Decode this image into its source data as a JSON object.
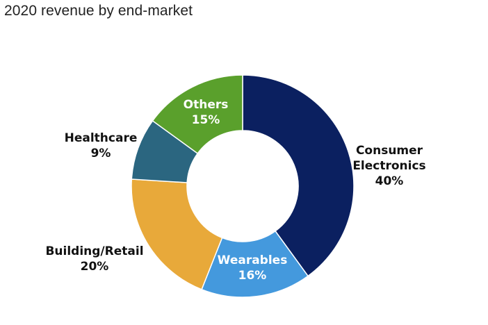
{
  "chart_data": {
    "type": "pie",
    "style": "donut",
    "title": "2020 revenue by end-market",
    "slices": [
      {
        "name": "Consumer Electronics",
        "label_lines": [
          "Consumer",
          "Electronics"
        ],
        "value": 40,
        "value_label": "40%",
        "color": "#0b2060",
        "label_color": "#111111"
      },
      {
        "name": "Wearables",
        "label_lines": [
          "Wearables"
        ],
        "value": 16,
        "value_label": "16%",
        "color": "#4499dd",
        "label_color": "#ffffff"
      },
      {
        "name": "Building/Retail",
        "label_lines": [
          "Building/Retail"
        ],
        "value": 20,
        "value_label": "20%",
        "color": "#e8a93a",
        "label_color": "#111111"
      },
      {
        "name": "Healthcare",
        "label_lines": [
          "Healthcare"
        ],
        "value": 9,
        "value_label": "9%",
        "color": "#2b6680",
        "label_color": "#111111"
      },
      {
        "name": "Others",
        "label_lines": [
          "Others"
        ],
        "value": 15,
        "value_label": "15%",
        "color": "#5aa02c",
        "label_color": "#ffffff"
      }
    ]
  }
}
